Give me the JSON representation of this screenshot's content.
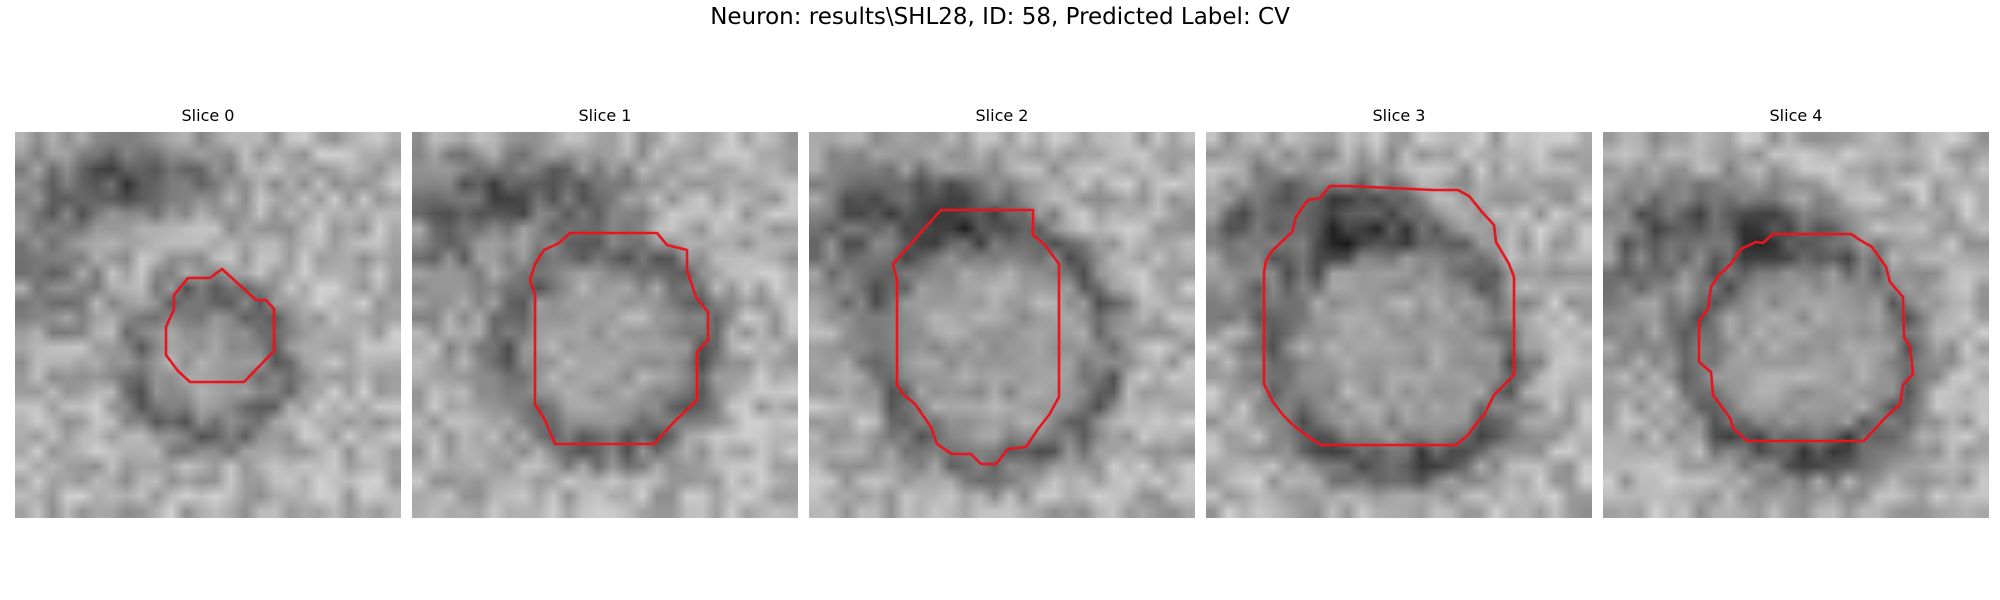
{
  "figure": {
    "suptitle": "Neuron: results\\SHL28, ID: 58, Predicted Label: CV",
    "outline_color": "#e8141e"
  },
  "panels": [
    {
      "title": "Slice 0"
    },
    {
      "title": "Slice 1"
    },
    {
      "title": "Slice 2"
    },
    {
      "title": "Slice 3"
    },
    {
      "title": "Slice 4"
    }
  ]
}
